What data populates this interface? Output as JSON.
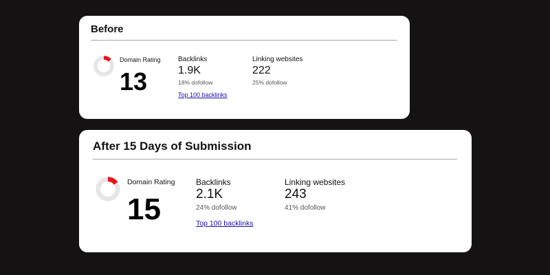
{
  "colors": {
    "background": "#141213",
    "card": "#ffffff",
    "donut_track": "#e6e6e6",
    "donut_fill": "#e8141b",
    "link": "#1a0dab"
  },
  "before": {
    "title": "Before",
    "domain_rating": {
      "label": "Domain Rating",
      "value": "13",
      "fraction": 0.13
    },
    "backlinks": {
      "label": "Backlinks",
      "value": "1.9K",
      "dofollow": "18% dofollow",
      "link_text": "Top 100 backlinks"
    },
    "linking_websites": {
      "label": "Linking websites",
      "value": "222",
      "dofollow": "25% dofollow"
    }
  },
  "after": {
    "title": "After 15 Days of Submission",
    "domain_rating": {
      "label": "Domain Rating",
      "value": "15",
      "fraction": 0.15
    },
    "backlinks": {
      "label": "Backlinks",
      "value": "2.1K",
      "dofollow": "24% dofollow",
      "link_text": "Top 100 backlinks"
    },
    "linking_websites": {
      "label": "Linking websites",
      "value": "243",
      "dofollow": "41% dofollow"
    }
  }
}
